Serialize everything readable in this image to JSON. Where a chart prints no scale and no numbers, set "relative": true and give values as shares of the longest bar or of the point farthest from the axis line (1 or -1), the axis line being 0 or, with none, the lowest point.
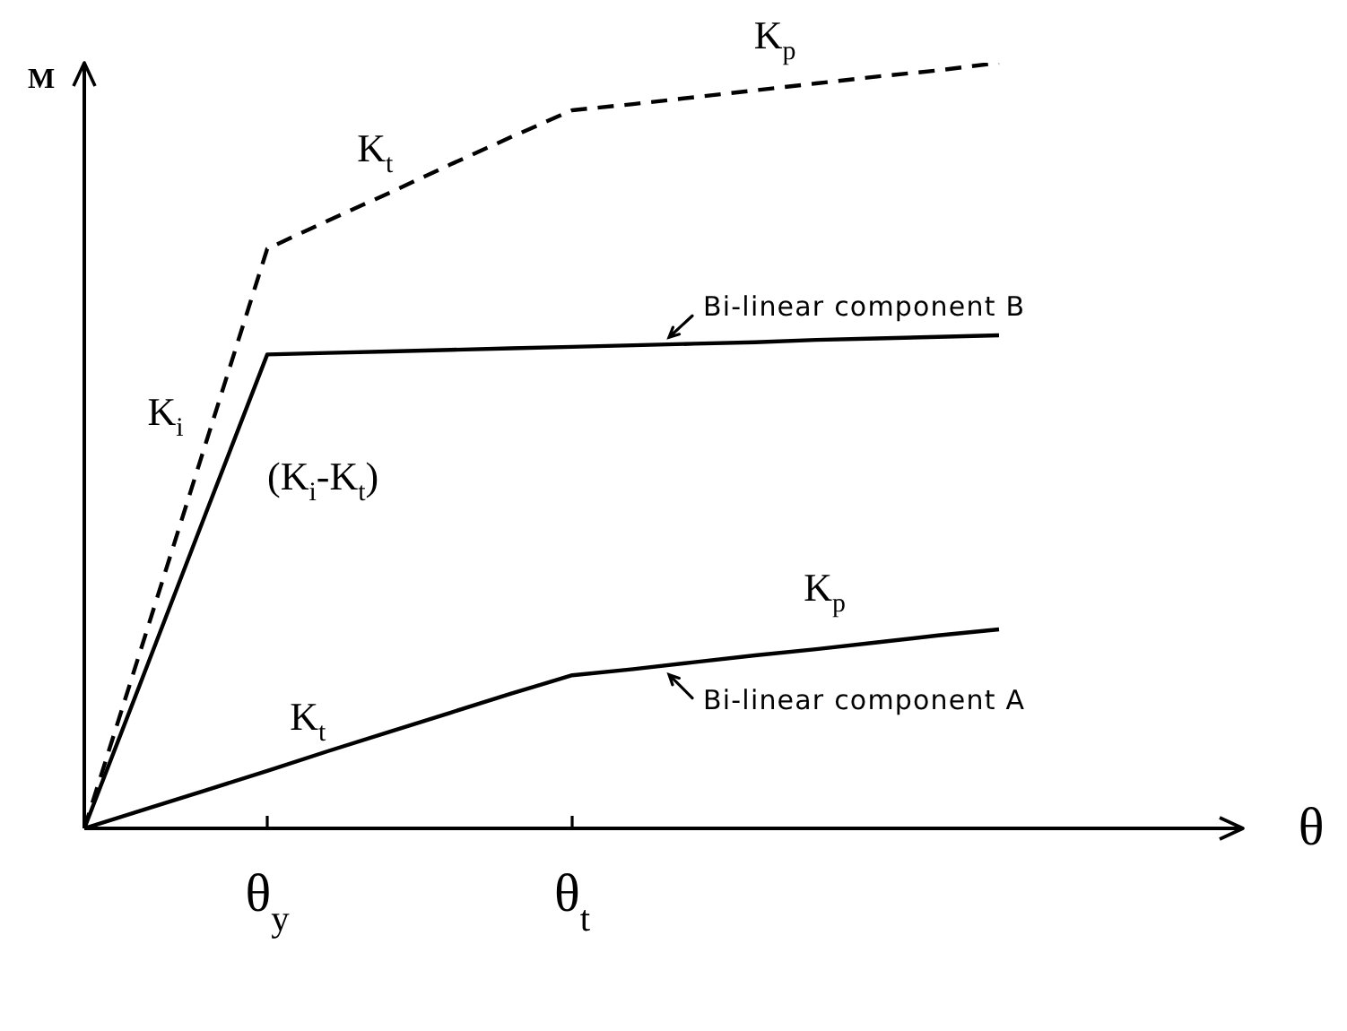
{
  "chart_data": {
    "type": "line",
    "relative": true,
    "xlabel": "θ",
    "ylabel": "M",
    "categories": [
      null,
      null,
      null,
      "θ$_{y}$",
      null,
      null,
      null,
      null,
      "θ$_{t}$",
      null,
      null,
      null,
      null,
      null,
      null,
      null,
      null,
      null,
      null,
      null
    ],
    "marker": "none",
    "line_style": "solid",
    "series": [
      {
        "values": [
          0,
          0.252,
          0.505,
          0.757,
          0.794,
          0.83,
          0.867,
          0.903,
          0.938,
          0.946,
          0.955,
          0.964,
          0.973,
          0.982,
          0.99,
          1,
          null,
          null,
          null,
          null
        ],
        "color": "#000000",
        "line_style": "dashed"
      },
      {
        "name": "Bi-linear component B",
        "values": [
          0,
          0.206,
          0.413,
          0.619,
          0.621,
          0.623,
          0.625,
          0.627,
          0.629,
          0.631,
          0.633,
          0.635,
          0.638,
          0.64,
          0.642,
          0.644,
          null,
          null,
          null,
          null
        ],
        "color": "#000000"
      },
      {
        "name": "Bi-linear component A",
        "values": [
          0,
          0.025,
          0.05,
          0.075,
          0.101,
          0.126,
          0.151,
          0.176,
          0.2,
          0.208,
          0.217,
          0.226,
          0.234,
          0.243,
          0.252,
          0.26,
          null,
          null,
          null,
          null
        ],
        "color": "#000000"
      }
    ],
    "annotations": [
      "K$_{t}$",
      "K$_{p}$",
      "K$_{i}$",
      "(K$_{i}$-K$_{t}$)",
      "K$_{t}$",
      "K$_{p}$"
    ]
  }
}
